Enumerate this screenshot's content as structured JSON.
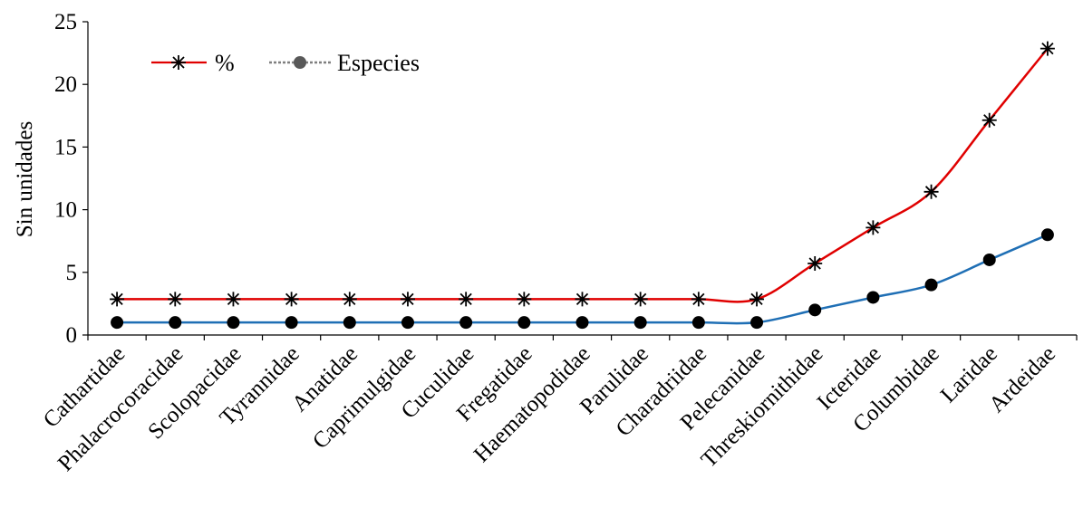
{
  "chart_data": {
    "type": "line",
    "title": "",
    "xlabel": "",
    "ylabel": "Sin unidades",
    "ylim": [
      0,
      25
    ],
    "yticks": [
      0,
      5,
      10,
      15,
      20,
      25
    ],
    "grid": false,
    "legend_position": "top-left",
    "categories": [
      "Cathartidae",
      "Phalacrocoracidae",
      "Scolopacidae",
      "Tyrannidae",
      "Anatidae",
      "Caprimulgidae",
      "Cuculidae",
      "Fregatidae",
      "Haematopodidae",
      "Parulidae",
      "Charadriidae",
      "Pelecanidae",
      "Threskiornithidae",
      "Icteridae",
      "Columbidae",
      "Laridae",
      "Ardeidae"
    ],
    "series": [
      {
        "name": "%",
        "values": [
          2.86,
          2.86,
          2.86,
          2.86,
          2.86,
          2.86,
          2.86,
          2.86,
          2.86,
          2.86,
          2.86,
          2.86,
          5.71,
          8.57,
          11.43,
          17.14,
          22.86
        ],
        "color": "#e00000",
        "marker": "asterisk",
        "marker_color": "#000000"
      },
      {
        "name": "Especies",
        "values": [
          1,
          1,
          1,
          1,
          1,
          1,
          1,
          1,
          1,
          1,
          1,
          1,
          2,
          3,
          4,
          6,
          8
        ],
        "color": "#1f6fb5",
        "marker": "circle",
        "marker_color": "#000000",
        "legend_line_color": "#7f7f7f",
        "legend_marker_color": "#595959"
      }
    ]
  }
}
